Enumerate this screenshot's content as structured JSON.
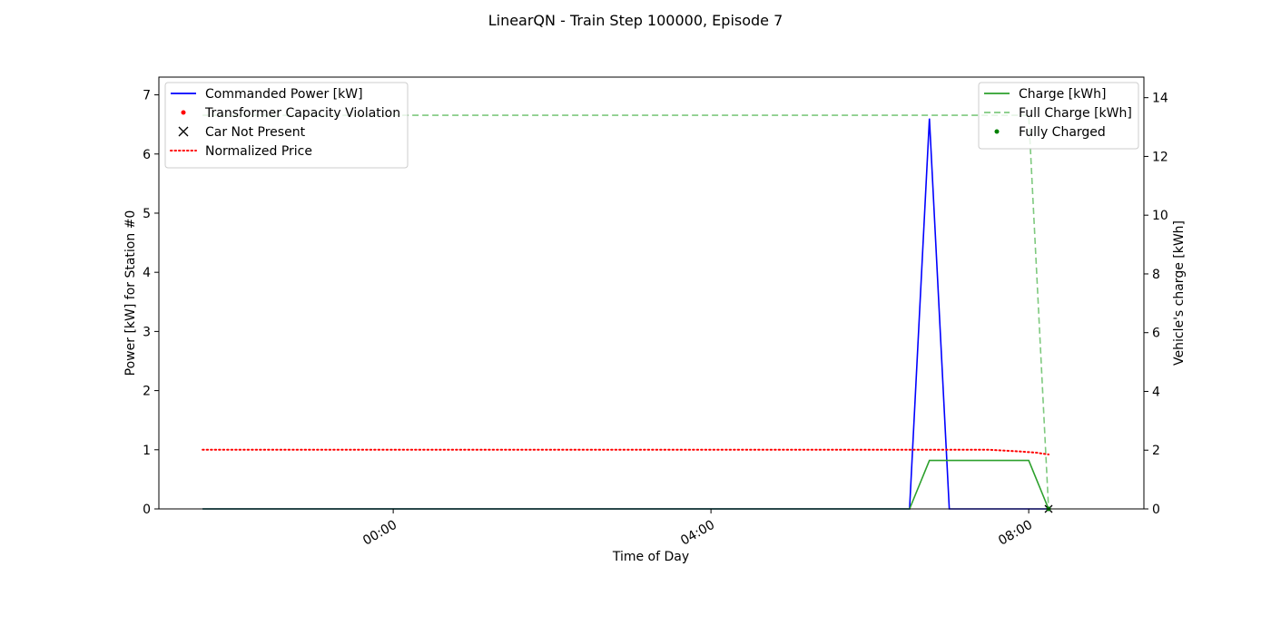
{
  "chart_data": {
    "type": "line",
    "title": "LinearQN - Train Step 100000, Episode 7",
    "xlabel": "Time of Day",
    "ylabel_left": "Power [kW] for Station #0",
    "ylabel_right": "Vehicle's charge [kWh]",
    "x_unit": "hours",
    "xlim": [
      -2.95,
      9.45
    ],
    "ylim_left": [
      0,
      7.3
    ],
    "ylim_right": [
      0,
      14.7
    ],
    "xticks": [
      {
        "value": 0,
        "label": "00:00"
      },
      {
        "value": 4,
        "label": "04:00"
      },
      {
        "value": 8,
        "label": "08:00"
      }
    ],
    "yticks_left": [
      0,
      1,
      2,
      3,
      4,
      5,
      6,
      7
    ],
    "yticks_right": [
      0,
      2,
      4,
      6,
      8,
      10,
      12,
      14
    ],
    "grid": false,
    "legend_left": {
      "placement": "top-left",
      "entries": [
        {
          "label": "Commanded Power [kW]",
          "marker": "line",
          "color": "#0000ff"
        },
        {
          "label": "Transformer Capacity Violation",
          "marker": "dot",
          "color": "#ff0000"
        },
        {
          "label": "Car Not Present",
          "marker": "x",
          "color": "#000000"
        },
        {
          "label": "Normalized Price",
          "marker": "dotted",
          "color": "#ff0000"
        }
      ]
    },
    "legend_right": {
      "placement": "top-right",
      "entries": [
        {
          "label": "Charge [kWh]",
          "marker": "line",
          "color": "#2ca02c"
        },
        {
          "label": "Full Charge [kWh]",
          "marker": "dashed",
          "color": "#7ec97e"
        },
        {
          "label": "Fully Charged",
          "marker": "dot",
          "color": "#008000"
        }
      ]
    },
    "series": [
      {
        "name": "Commanded Power [kW]",
        "axis": "left",
        "style": "solid",
        "color": "#0000ff",
        "points": [
          [
            -2.4,
            0
          ],
          [
            6.5,
            0
          ],
          [
            6.75,
            6.6
          ],
          [
            7.0,
            0
          ],
          [
            8.25,
            0
          ]
        ]
      },
      {
        "name": "Normalized Price",
        "axis": "left",
        "style": "dotted",
        "color": "#ff0000",
        "points": [
          [
            -2.4,
            1.0
          ],
          [
            7.5,
            1.0
          ],
          [
            7.9,
            0.97
          ],
          [
            8.1,
            0.95
          ],
          [
            8.25,
            0.92
          ]
        ]
      },
      {
        "name": "Charge [kWh]",
        "axis": "right",
        "style": "solid",
        "color": "#2ca02c",
        "points": [
          [
            -2.4,
            0
          ],
          [
            6.5,
            0
          ],
          [
            6.75,
            1.65
          ],
          [
            8.0,
            1.65
          ],
          [
            8.25,
            0
          ]
        ]
      },
      {
        "name": "Full Charge [kWh]",
        "axis": "right",
        "style": "dashed",
        "color": "#7ec97e",
        "points": [
          [
            -2.4,
            13.4
          ],
          [
            8.0,
            13.4
          ],
          [
            8.25,
            0
          ]
        ]
      }
    ],
    "markers": [
      {
        "name": "Car Not Present",
        "axis": "left",
        "symbol": "x",
        "color": "#000000",
        "points": [
          [
            8.25,
            0
          ]
        ]
      },
      {
        "name": "Fully Charged",
        "axis": "right",
        "symbol": "dot",
        "color": "#008000",
        "points": [
          [
            8.25,
            0
          ]
        ]
      }
    ]
  }
}
